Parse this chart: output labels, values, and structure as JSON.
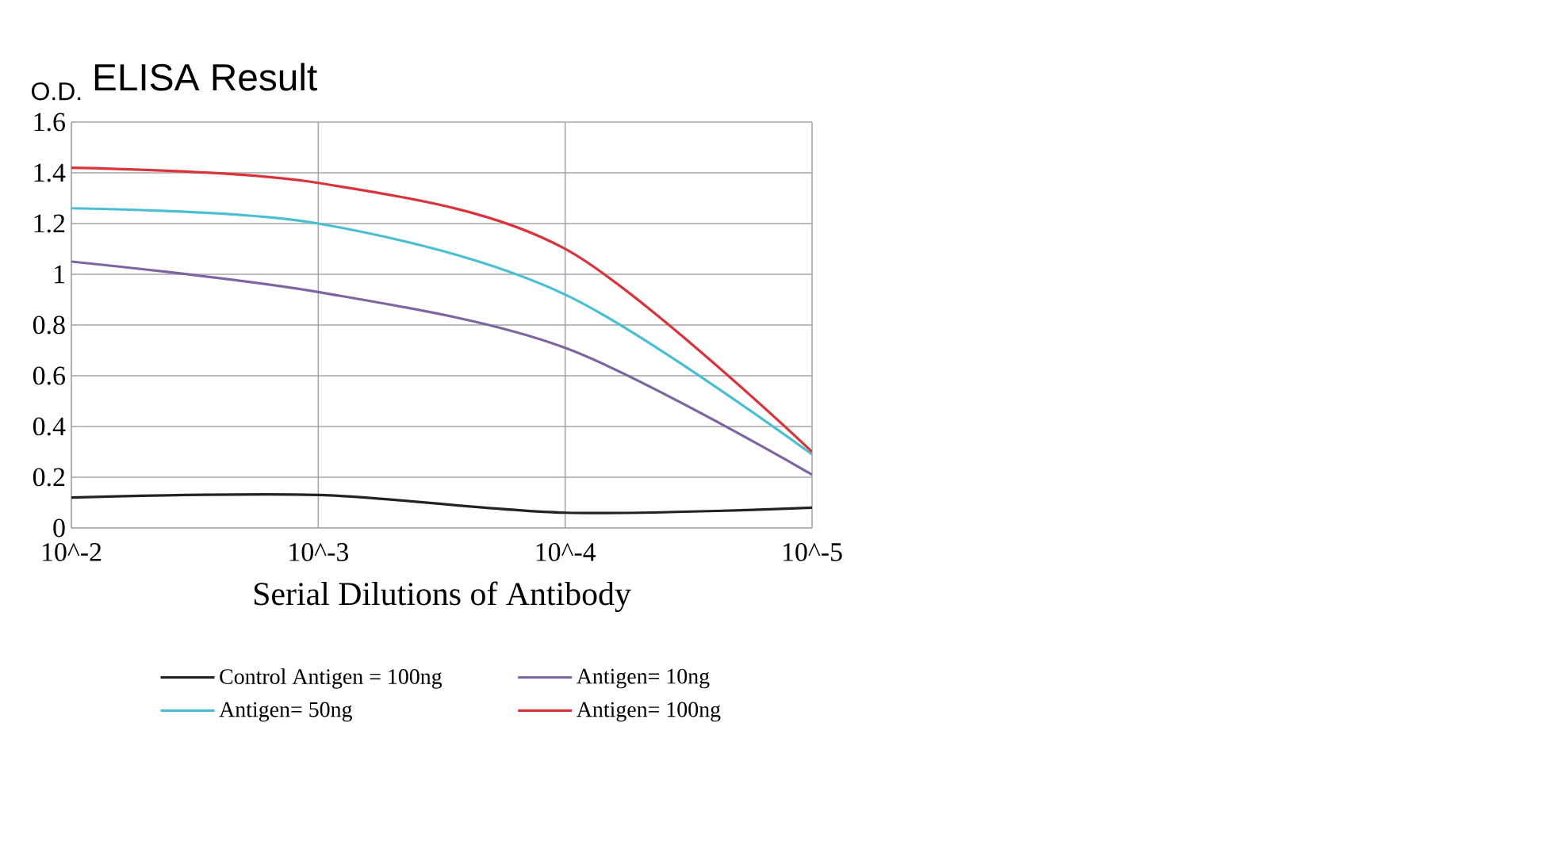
{
  "chart_data": {
    "type": "line",
    "title": "ELISA Result",
    "ylabel": "O.D.",
    "xlabel": "Serial Dilutions of Antibody",
    "categories": [
      "10^-2",
      "10^-3",
      "10^-4",
      "10^-5"
    ],
    "series": [
      {
        "name": "Control Antigen = 100ng",
        "color": "#222222",
        "values": [
          0.12,
          0.13,
          0.06,
          0.08
        ]
      },
      {
        "name": "Antigen= 10ng",
        "color": "#8064a2",
        "values": [
          1.05,
          0.93,
          0.71,
          0.21
        ]
      },
      {
        "name": "Antigen= 50ng",
        "color": "#4bbfd2",
        "values": [
          1.26,
          1.2,
          0.92,
          0.29
        ]
      },
      {
        "name": "Antigen= 100ng",
        "color": "#d9343a",
        "values": [
          1.42,
          1.36,
          1.1,
          0.3
        ]
      }
    ],
    "ylim": [
      0,
      1.6
    ],
    "yticks": [
      0,
      0.2,
      0.4,
      0.6,
      0.8,
      1,
      1.2,
      1.4,
      1.6
    ],
    "grid": true,
    "legend": "bottom",
    "marker": "none",
    "line_style": "solid"
  }
}
